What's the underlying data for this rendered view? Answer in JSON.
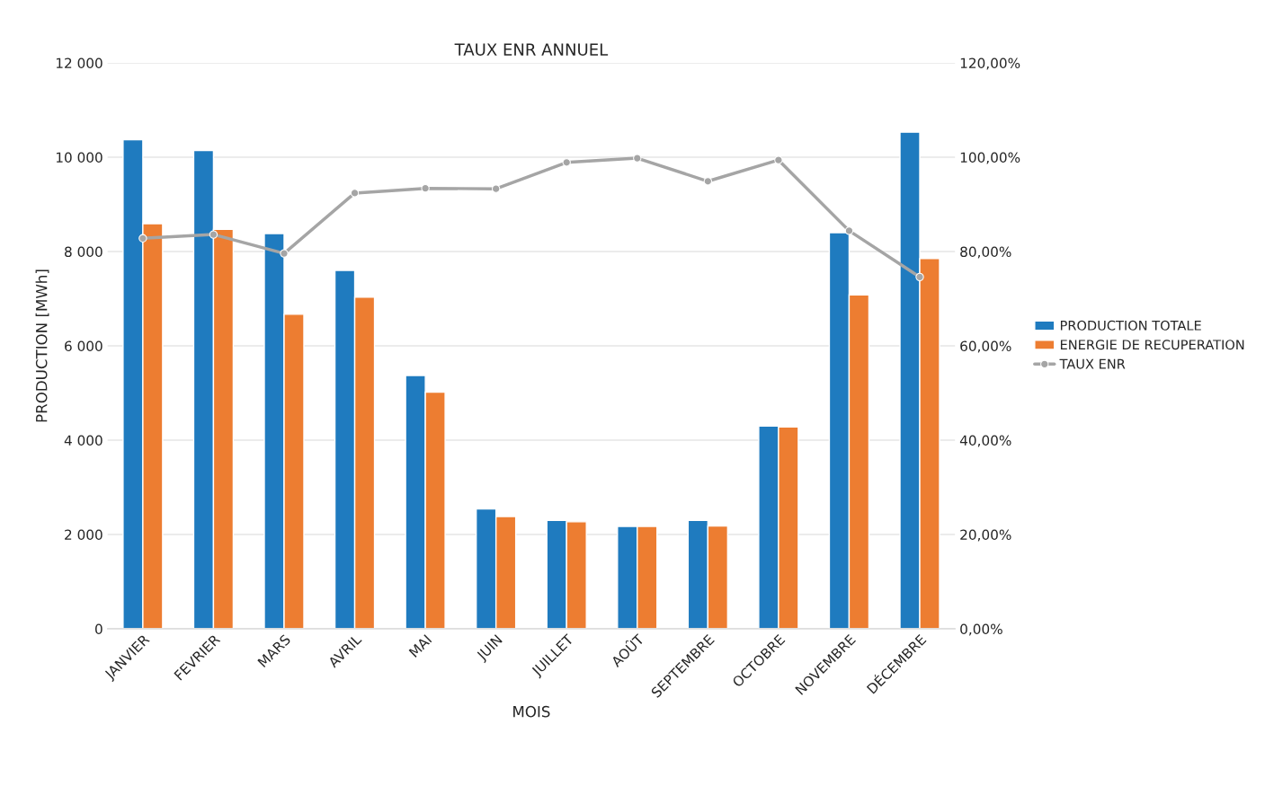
{
  "chart_data": {
    "type": "bar",
    "title": "TAUX ENR ANNUEL",
    "xlabel": "MOIS",
    "ylabel": "PRODUCTION [MWh]",
    "categories": [
      "JANVIER",
      "FEVRIER",
      "MARS",
      "AVRIL",
      "MAI",
      "JUIN",
      "JUILLET",
      "AOÛT",
      "SEPTEMBRE",
      "OCTOBRE",
      "NOVEMBRE",
      "DÉCEMBRE"
    ],
    "series": [
      {
        "name": "PRODUCTION TOTALE",
        "color": "#1f7bbf",
        "values": [
          10370,
          10140,
          8380,
          7600,
          5370,
          2540,
          2300,
          2170,
          2300,
          4300,
          8400,
          10530
        ]
      },
      {
        "name": "ENERGIE DE RECUPERATION",
        "color": "#ed7d31",
        "values": [
          8590,
          8470,
          6670,
          7030,
          5020,
          2380,
          2270,
          2170,
          2180,
          4280,
          7080,
          7850
        ]
      },
      {
        "name": "TAUX ENR",
        "type": "line",
        "axis": "y2",
        "color": "#a5a5a5",
        "marker": "circle",
        "values": [
          82.8,
          83.6,
          79.6,
          92.4,
          93.4,
          93.3,
          98.9,
          99.8,
          94.9,
          99.4,
          84.4,
          74.6
        ]
      }
    ],
    "ylim": [
      0,
      12000
    ],
    "yticks": [
      {
        "value": 0,
        "label": "0"
      },
      {
        "value": 2000,
        "label": "2 000"
      },
      {
        "value": 4000,
        "label": "4 000"
      },
      {
        "value": 6000,
        "label": "6 000"
      },
      {
        "value": 8000,
        "label": "8 000"
      },
      {
        "value": 10000,
        "label": "10 000"
      },
      {
        "value": 12000,
        "label": "12 000"
      }
    ],
    "y2lim": [
      0,
      120
    ],
    "y2ticks": [
      {
        "value": 0,
        "label": "0,00%"
      },
      {
        "value": 20,
        "label": "20,00%"
      },
      {
        "value": 40,
        "label": "40,00%"
      },
      {
        "value": 60,
        "label": "60,00%"
      },
      {
        "value": 80,
        "label": "80,00%"
      },
      {
        "value": 100,
        "label": "100,00%"
      },
      {
        "value": 120,
        "label": "120,00%"
      }
    ],
    "grid": "y",
    "legend": "right"
  }
}
